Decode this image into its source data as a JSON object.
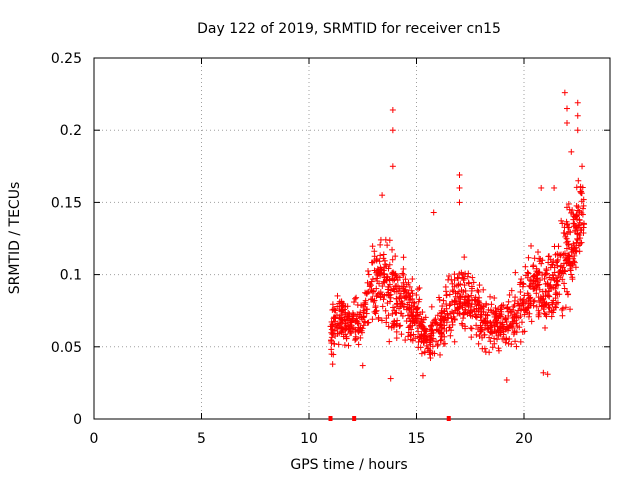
{
  "chart_data": {
    "type": "scatter",
    "title": "Day 122 of 2019, SRMTID for receiver cn15",
    "xlabel": "GPS time / hours",
    "ylabel": "SRMTID / TECUs",
    "xlim": [
      0,
      24
    ],
    "ylim": [
      0,
      0.25
    ],
    "x_ticks": [
      0,
      5,
      10,
      15,
      20
    ],
    "y_ticks": [
      0,
      0.05,
      0.1,
      0.15,
      0.2,
      0.25
    ],
    "grid": true,
    "marker": "+",
    "color": "#ff0000",
    "zero_value_markers_x": [
      11.0,
      12.1,
      16.5
    ],
    "series": [
      {
        "name": "SRMTID",
        "control_points": [
          {
            "hour": 11.0,
            "median": 0.06,
            "spread": 0.015
          },
          {
            "hour": 11.5,
            "median": 0.07,
            "spread": 0.015
          },
          {
            "hour": 12.0,
            "median": 0.065,
            "spread": 0.015
          },
          {
            "hour": 12.5,
            "median": 0.07,
            "spread": 0.018
          },
          {
            "hour": 13.0,
            "median": 0.09,
            "spread": 0.025
          },
          {
            "hour": 13.5,
            "median": 0.095,
            "spread": 0.03
          },
          {
            "hour": 14.0,
            "median": 0.085,
            "spread": 0.025
          },
          {
            "hour": 14.5,
            "median": 0.08,
            "spread": 0.02
          },
          {
            "hour": 15.0,
            "median": 0.07,
            "spread": 0.02
          },
          {
            "hour": 15.5,
            "median": 0.055,
            "spread": 0.015
          },
          {
            "hour": 16.0,
            "median": 0.06,
            "spread": 0.018
          },
          {
            "hour": 16.5,
            "median": 0.075,
            "spread": 0.02
          },
          {
            "hour": 17.0,
            "median": 0.085,
            "spread": 0.025
          },
          {
            "hour": 17.5,
            "median": 0.08,
            "spread": 0.022
          },
          {
            "hour": 18.0,
            "median": 0.07,
            "spread": 0.02
          },
          {
            "hour": 18.5,
            "median": 0.065,
            "spread": 0.018
          },
          {
            "hour": 19.0,
            "median": 0.065,
            "spread": 0.018
          },
          {
            "hour": 19.5,
            "median": 0.07,
            "spread": 0.02
          },
          {
            "hour": 20.0,
            "median": 0.085,
            "spread": 0.022
          },
          {
            "hour": 20.5,
            "median": 0.095,
            "spread": 0.025
          },
          {
            "hour": 21.0,
            "median": 0.09,
            "spread": 0.025
          },
          {
            "hour": 21.5,
            "median": 0.1,
            "spread": 0.028
          },
          {
            "hour": 22.0,
            "median": 0.115,
            "spread": 0.035
          },
          {
            "hour": 22.5,
            "median": 0.13,
            "spread": 0.03
          },
          {
            "hour": 22.8,
            "median": 0.145,
            "spread": 0.02
          }
        ],
        "peaks": [
          {
            "hour": 13.9,
            "value": 0.214
          },
          {
            "hour": 13.9,
            "value": 0.2
          },
          {
            "hour": 13.9,
            "value": 0.175
          },
          {
            "hour": 13.4,
            "value": 0.155
          },
          {
            "hour": 15.8,
            "value": 0.143
          },
          {
            "hour": 17.0,
            "value": 0.169
          },
          {
            "hour": 17.0,
            "value": 0.16
          },
          {
            "hour": 17.0,
            "value": 0.15
          },
          {
            "hour": 20.8,
            "value": 0.16
          },
          {
            "hour": 21.4,
            "value": 0.16
          },
          {
            "hour": 21.9,
            "value": 0.226
          },
          {
            "hour": 22.0,
            "value": 0.215
          },
          {
            "hour": 22.0,
            "value": 0.205
          },
          {
            "hour": 22.5,
            "value": 0.219
          },
          {
            "hour": 22.5,
            "value": 0.21
          },
          {
            "hour": 22.5,
            "value": 0.2
          },
          {
            "hour": 22.7,
            "value": 0.175
          },
          {
            "hour": 22.2,
            "value": 0.185
          },
          {
            "hour": 15.3,
            "value": 0.03
          },
          {
            "hour": 13.8,
            "value": 0.028
          },
          {
            "hour": 19.2,
            "value": 0.027
          },
          {
            "hour": 20.9,
            "value": 0.032
          },
          {
            "hour": 21.1,
            "value": 0.031
          },
          {
            "hour": 11.1,
            "value": 0.038
          },
          {
            "hour": 12.5,
            "value": 0.037
          }
        ]
      }
    ]
  }
}
